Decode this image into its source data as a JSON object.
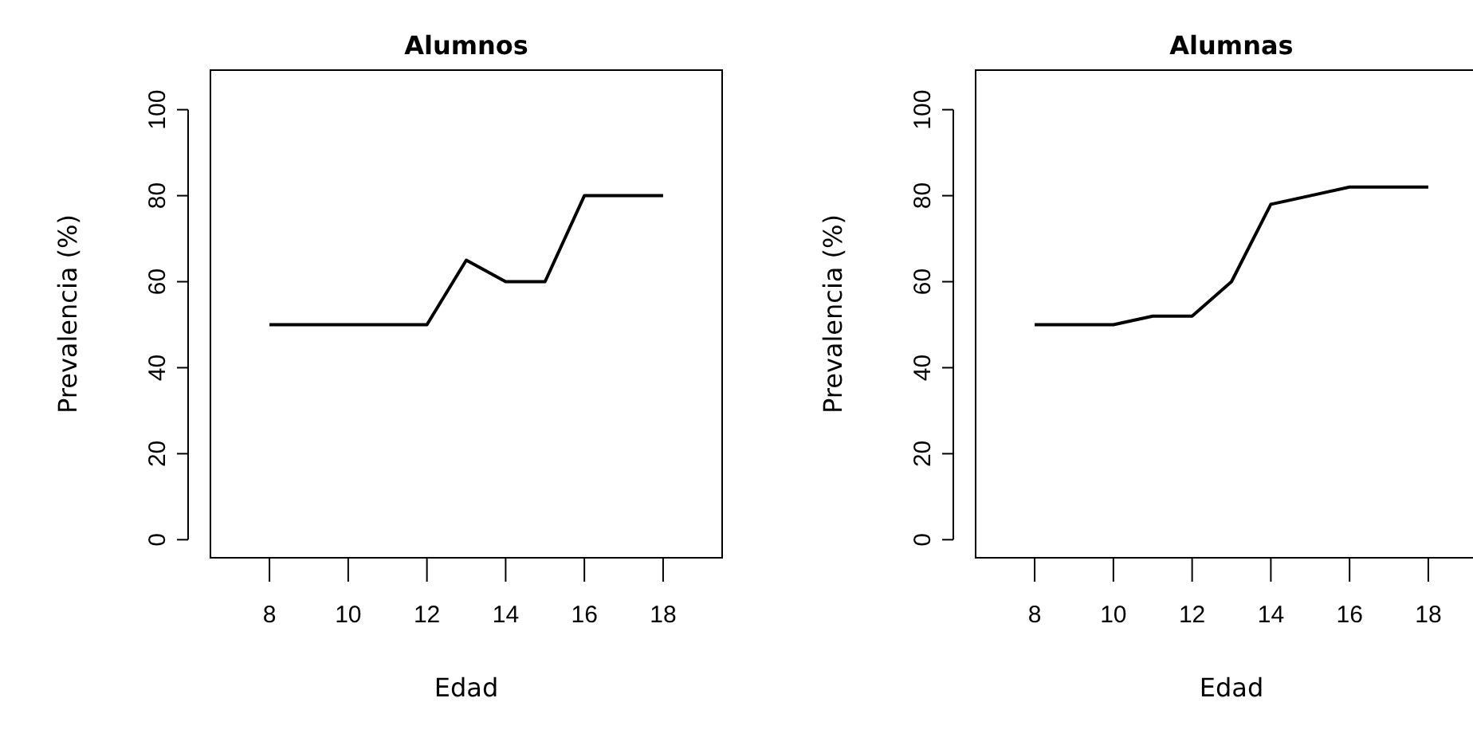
{
  "chart_data": [
    {
      "type": "line",
      "title": "Alumnos",
      "xlabel": "Edad",
      "ylabel": "Prevalencia (%)",
      "x": [
        8,
        9,
        10,
        11,
        12,
        13,
        14,
        15,
        16,
        17,
        18
      ],
      "series": [
        {
          "color": "#000000",
          "values": [
            50,
            50,
            50,
            50,
            50,
            65,
            60,
            60,
            80,
            80,
            80
          ]
        }
      ],
      "xlim": [
        6.5,
        19.5
      ],
      "ylim": [
        -4.2,
        109.2
      ],
      "xticks": [
        8,
        10,
        12,
        14,
        16,
        18
      ],
      "yticks": [
        0,
        20,
        40,
        60,
        80,
        100
      ]
    },
    {
      "type": "line",
      "title": "Alumnas",
      "xlabel": "Edad",
      "ylabel": "Prevalencia (%)",
      "x": [
        8,
        9,
        10,
        11,
        12,
        13,
        14,
        15,
        16,
        17,
        18
      ],
      "series": [
        {
          "color": "#000000",
          "values": [
            50,
            50,
            50,
            52,
            52,
            60,
            78,
            80,
            82,
            82,
            82
          ]
        }
      ],
      "xlim": [
        6.5,
        19.5
      ],
      "ylim": [
        -4.2,
        109.2
      ],
      "xticks": [
        8,
        10,
        12,
        14,
        16,
        18
      ],
      "yticks": [
        0,
        20,
        40,
        60,
        80,
        100
      ]
    }
  ]
}
